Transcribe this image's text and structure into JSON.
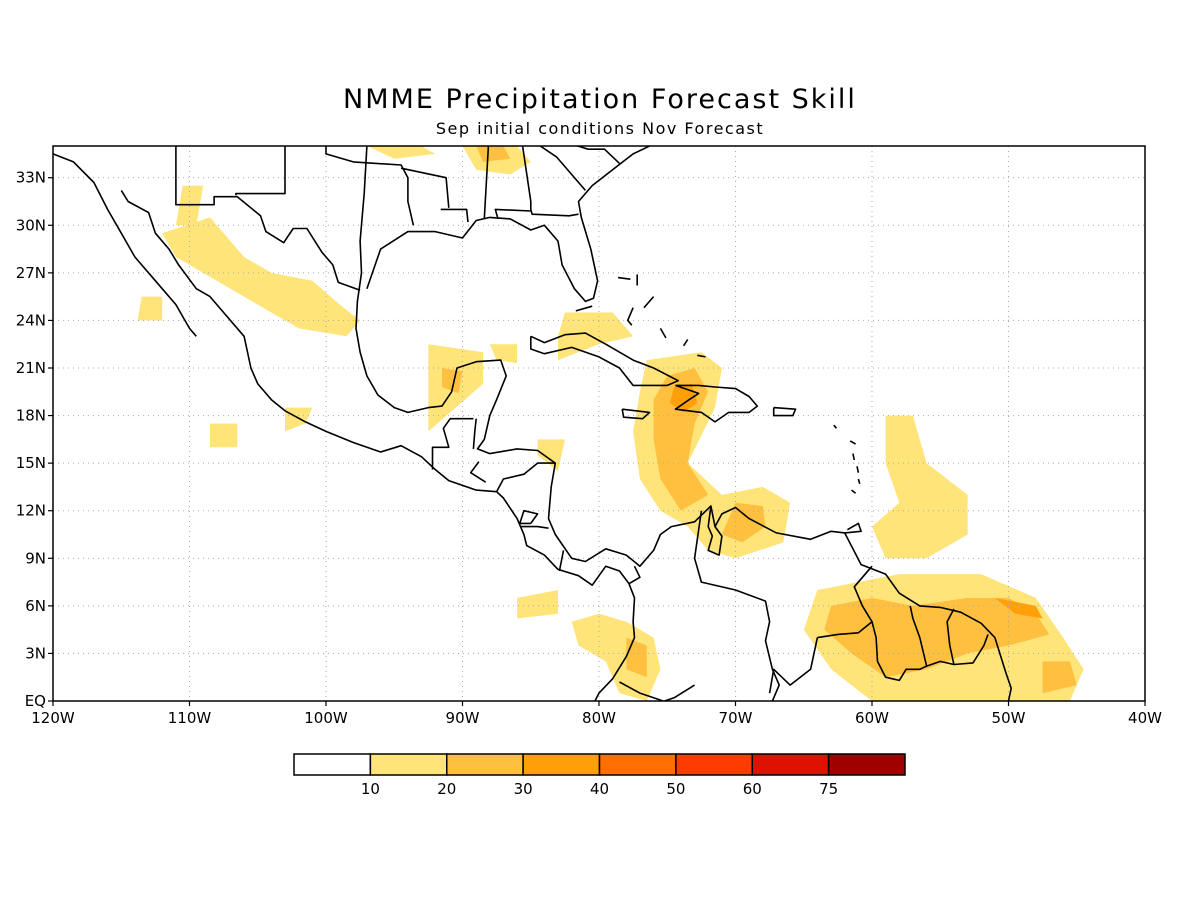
{
  "title": "NMME Precipitation Forecast Skill",
  "subtitle": "Sep initial conditions  Nov Forecast",
  "map": {
    "lon_range": [
      -120,
      -40
    ],
    "lat_range": [
      0,
      35
    ],
    "lon_ticks": [
      {
        "value": -120,
        "label": "120W"
      },
      {
        "value": -110,
        "label": "110W"
      },
      {
        "value": -100,
        "label": "100W"
      },
      {
        "value": -90,
        "label": "90W"
      },
      {
        "value": -80,
        "label": "80W"
      },
      {
        "value": -70,
        "label": "70W"
      },
      {
        "value": -60,
        "label": "60W"
      },
      {
        "value": -50,
        "label": "50W"
      },
      {
        "value": -40,
        "label": "40W"
      }
    ],
    "lat_ticks": [
      {
        "value": 0,
        "label": "EQ"
      },
      {
        "value": 3,
        "label": "3N"
      },
      {
        "value": 6,
        "label": "6N"
      },
      {
        "value": 9,
        "label": "9N"
      },
      {
        "value": 12,
        "label": "12N"
      },
      {
        "value": 15,
        "label": "15N"
      },
      {
        "value": 18,
        "label": "18N"
      },
      {
        "value": 21,
        "label": "21N"
      },
      {
        "value": 24,
        "label": "24N"
      },
      {
        "value": 27,
        "label": "27N"
      },
      {
        "value": 30,
        "label": "30N"
      },
      {
        "value": 33,
        "label": "33N"
      }
    ],
    "grid": "dotted"
  },
  "legend": {
    "colors": [
      "#ffffff",
      "#ffe47a",
      "#ffc040",
      "#ffa00a",
      "#ff6e00",
      "#ff3c00",
      "#dd1200",
      "#a00000"
    ],
    "labels": [
      "10",
      "20",
      "30",
      "40",
      "50",
      "60",
      "75"
    ]
  },
  "skill_regions": [
    {
      "level": 1,
      "points": [
        [
          -112,
          29.5
        ],
        [
          -108.5,
          30.5
        ],
        [
          -106,
          28
        ],
        [
          -104,
          27
        ],
        [
          -101,
          26.5
        ],
        [
          -99,
          25
        ],
        [
          -97.5,
          24
        ],
        [
          -98.5,
          23
        ],
        [
          -102,
          23.5
        ],
        [
          -105,
          25
        ],
        [
          -108,
          26.5
        ],
        [
          -111,
          28
        ]
      ]
    },
    {
      "level": 1,
      "points": [
        [
          -110.5,
          32.5
        ],
        [
          -109,
          32.5
        ],
        [
          -109.5,
          30
        ],
        [
          -111,
          30
        ]
      ]
    },
    {
      "level": 1,
      "points": [
        [
          -113.5,
          25.5
        ],
        [
          -112,
          25.5
        ],
        [
          -112,
          24
        ],
        [
          -113.8,
          24
        ]
      ]
    },
    {
      "level": 1,
      "points": [
        [
          -103,
          18.5
        ],
        [
          -101,
          18.5
        ],
        [
          -101.5,
          17.5
        ],
        [
          -103,
          17
        ]
      ]
    },
    {
      "level": 1,
      "points": [
        [
          -108.5,
          17.5
        ],
        [
          -106.5,
          17.5
        ],
        [
          -106.5,
          16
        ],
        [
          -108.5,
          16
        ]
      ]
    },
    {
      "level": 1,
      "points": [
        [
          -92.5,
          22.5
        ],
        [
          -88.5,
          22
        ],
        [
          -88.5,
          20
        ],
        [
          -90.5,
          18.5
        ],
        [
          -92.5,
          17
        ]
      ]
    },
    {
      "level": 2,
      "points": [
        [
          -91.5,
          21
        ],
        [
          -90,
          20.8
        ],
        [
          -90.3,
          19.4
        ],
        [
          -91.5,
          19.8
        ]
      ]
    },
    {
      "level": 1,
      "points": [
        [
          -88,
          22.5
        ],
        [
          -86,
          22.5
        ],
        [
          -86,
          21.3
        ],
        [
          -87.5,
          21.5
        ]
      ]
    },
    {
      "level": 1,
      "points": [
        [
          -82.5,
          24.5
        ],
        [
          -79,
          24.5
        ],
        [
          -77.5,
          23
        ],
        [
          -80,
          22.5
        ],
        [
          -83,
          21.5
        ],
        [
          -83,
          23
        ]
      ]
    },
    {
      "level": 1,
      "points": [
        [
          -97,
          35
        ],
        [
          -93,
          35
        ],
        [
          -92,
          34.5
        ],
        [
          -95,
          34.2
        ]
      ]
    },
    {
      "level": 1,
      "points": [
        [
          -90,
          35
        ],
        [
          -86,
          35
        ],
        [
          -85,
          34
        ],
        [
          -86.5,
          33.2
        ],
        [
          -89,
          33.5
        ]
      ]
    },
    {
      "level": 2,
      "points": [
        [
          -89,
          35
        ],
        [
          -87,
          35
        ],
        [
          -86.5,
          34.2
        ],
        [
          -88.5,
          34
        ]
      ]
    },
    {
      "level": 1,
      "points": [
        [
          -84.5,
          16.5
        ],
        [
          -82.5,
          16.5
        ],
        [
          -83,
          14.5
        ],
        [
          -84.5,
          15.5
        ]
      ]
    },
    {
      "level": 1,
      "points": [
        [
          -76.5,
          21.5
        ],
        [
          -72.5,
          22
        ],
        [
          -71,
          21
        ],
        [
          -71.5,
          18.5
        ],
        [
          -73.5,
          15
        ],
        [
          -71,
          13
        ],
        [
          -68,
          13.5
        ],
        [
          -66,
          12.5
        ],
        [
          -66.5,
          10
        ],
        [
          -70,
          9
        ],
        [
          -72,
          9.5
        ],
        [
          -73.5,
          11
        ],
        [
          -75.5,
          12
        ],
        [
          -77,
          14
        ],
        [
          -77.5,
          17
        ],
        [
          -77,
          19.5
        ]
      ]
    },
    {
      "level": 2,
      "points": [
        [
          -75,
          20.5
        ],
        [
          -73,
          21
        ],
        [
          -72,
          19.5
        ],
        [
          -73,
          17.5
        ],
        [
          -73.5,
          15
        ],
        [
          -72,
          13
        ],
        [
          -74,
          12
        ],
        [
          -75.5,
          14
        ],
        [
          -76,
          16.5
        ],
        [
          -76,
          19
        ]
      ]
    },
    {
      "level": 3,
      "points": [
        [
          -74.5,
          19.8
        ],
        [
          -73.2,
          20
        ],
        [
          -72.8,
          18.8
        ],
        [
          -73.8,
          18.2
        ],
        [
          -74.8,
          18.8
        ]
      ]
    },
    {
      "level": 2,
      "points": [
        [
          -70,
          12.5
        ],
        [
          -68,
          12.3
        ],
        [
          -67.8,
          11
        ],
        [
          -69.5,
          10
        ],
        [
          -71,
          10.5
        ]
      ]
    },
    {
      "level": 1,
      "points": [
        [
          -86,
          6.5
        ],
        [
          -83,
          7
        ],
        [
          -83,
          5.5
        ],
        [
          -86,
          5.2
        ]
      ]
    },
    {
      "level": 1,
      "points": [
        [
          -82,
          5
        ],
        [
          -80,
          5.5
        ],
        [
          -78,
          5
        ],
        [
          -76,
          4
        ],
        [
          -75.5,
          2
        ],
        [
          -76.5,
          0
        ],
        [
          -78.5,
          0.5
        ],
        [
          -79.5,
          2.5
        ],
        [
          -81.5,
          3.5
        ]
      ]
    },
    {
      "level": 2,
      "points": [
        [
          -78,
          4
        ],
        [
          -76.5,
          3.5
        ],
        [
          -76.5,
          1.5
        ],
        [
          -78,
          2
        ]
      ]
    },
    {
      "level": 1,
      "points": [
        [
          -59,
          18
        ],
        [
          -57,
          18
        ],
        [
          -56,
          15
        ],
        [
          -53,
          13
        ],
        [
          -53,
          10.5
        ],
        [
          -56,
          9
        ],
        [
          -59,
          9
        ],
        [
          -60,
          11
        ],
        [
          -58,
          12.5
        ],
        [
          -59,
          15
        ]
      ]
    },
    {
      "level": 1,
      "points": [
        [
          -64,
          7
        ],
        [
          -58,
          8
        ],
        [
          -52,
          8
        ],
        [
          -48,
          6.5
        ],
        [
          -46,
          4
        ],
        [
          -44.5,
          2
        ],
        [
          -45.5,
          0
        ],
        [
          -52,
          0
        ],
        [
          -56,
          0
        ],
        [
          -60,
          0
        ],
        [
          -63,
          2
        ],
        [
          -65,
          4.5
        ]
      ]
    },
    {
      "level": 2,
      "points": [
        [
          -63,
          6
        ],
        [
          -60,
          6.5
        ],
        [
          -57,
          6
        ],
        [
          -53,
          6.5
        ],
        [
          -50,
          6.5
        ],
        [
          -48,
          5.5
        ],
        [
          -47,
          4.2
        ],
        [
          -50,
          3.5
        ],
        [
          -53,
          3
        ],
        [
          -56,
          2
        ],
        [
          -59,
          1.5
        ],
        [
          -61.5,
          3
        ],
        [
          -63.5,
          4.5
        ]
      ]
    },
    {
      "level": 3,
      "points": [
        [
          -51,
          6.5
        ],
        [
          -48,
          6
        ],
        [
          -47.5,
          5.2
        ],
        [
          -49.5,
          5.5
        ]
      ]
    },
    {
      "level": 2,
      "points": [
        [
          -47.5,
          2.5
        ],
        [
          -45.5,
          2.5
        ],
        [
          -45,
          1
        ],
        [
          -47.5,
          0.5
        ]
      ]
    }
  ]
}
